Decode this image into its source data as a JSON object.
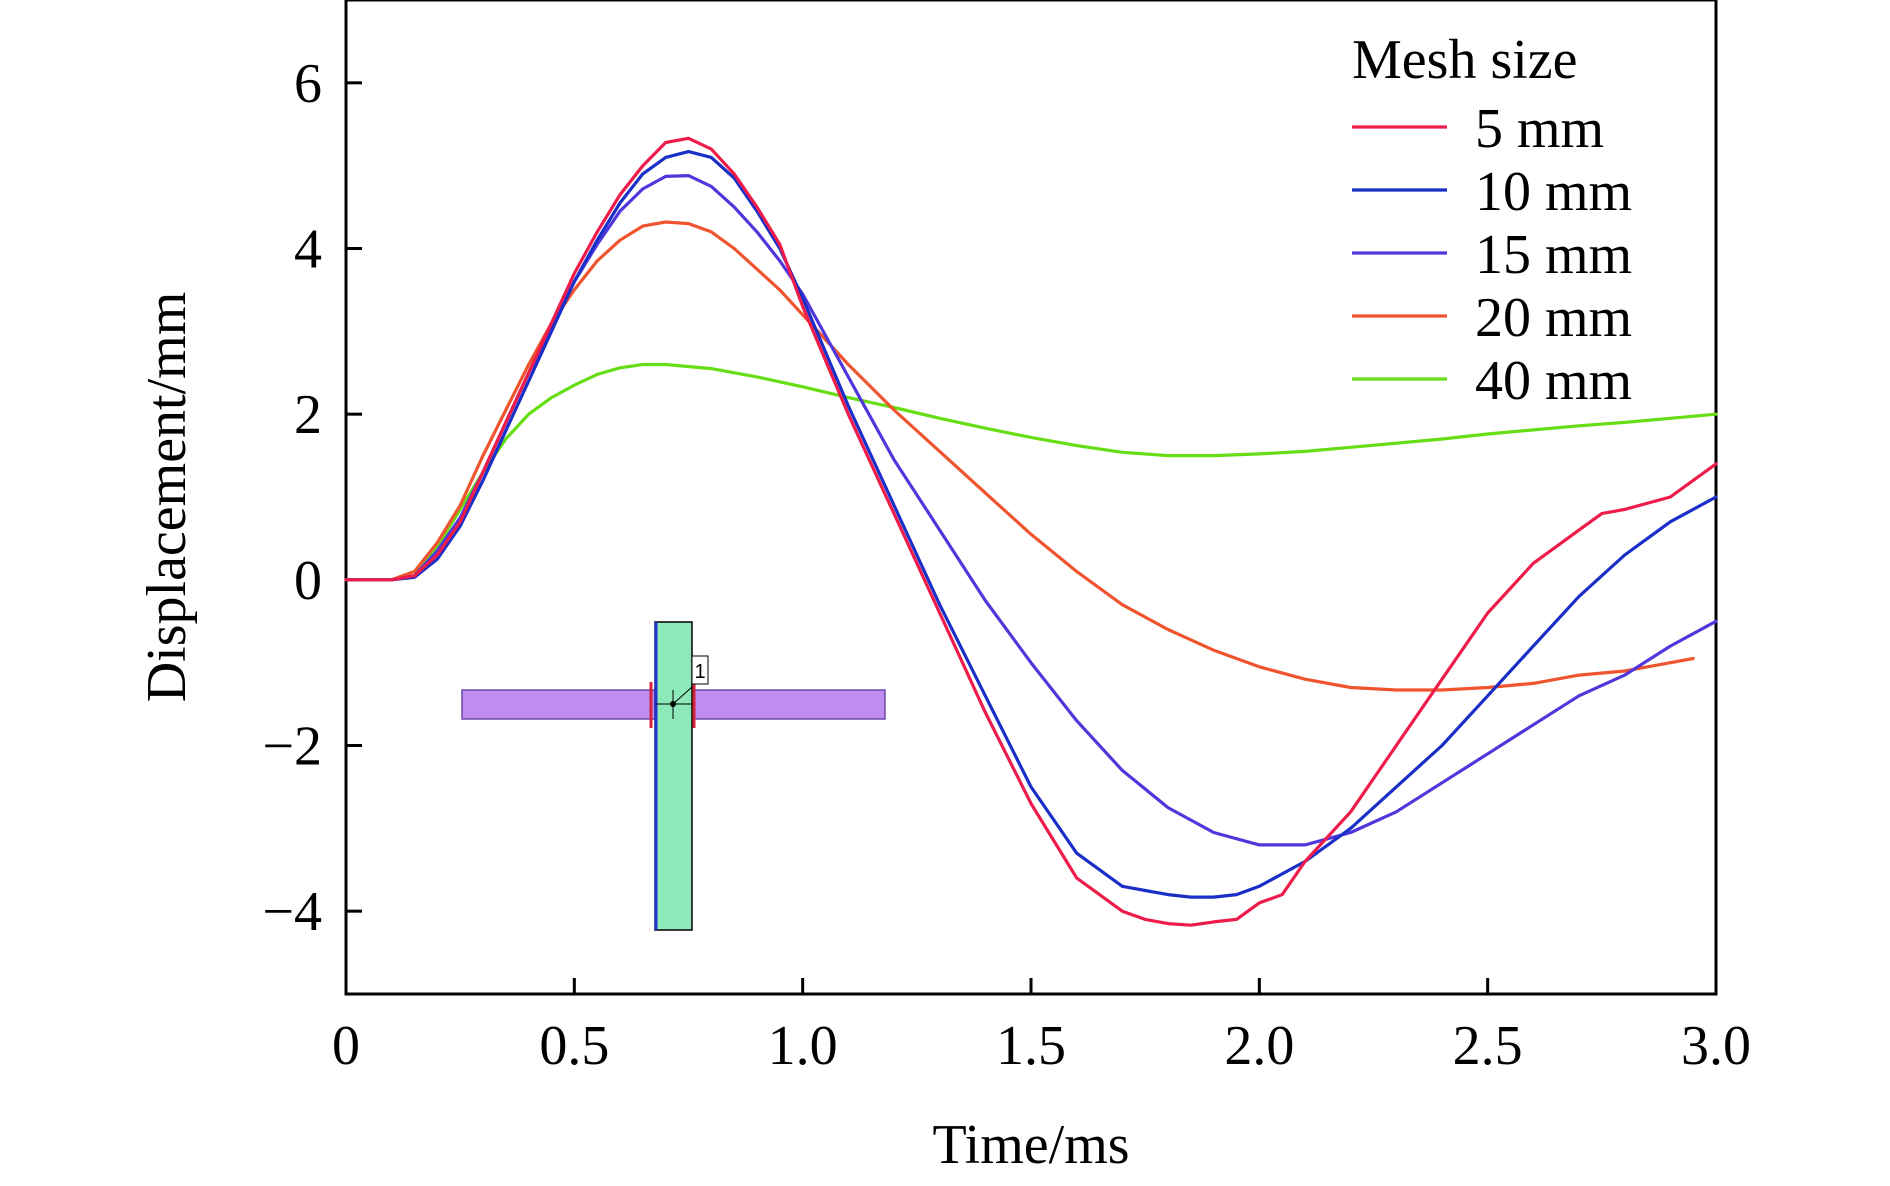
{
  "chart_data": {
    "type": "line",
    "title": "",
    "xlabel": "Time/ms",
    "ylabel": "Displacement/mm",
    "xlim": [
      0,
      3.0
    ],
    "ylim": [
      -5,
      7
    ],
    "x_ticks": [
      0,
      0.5,
      1.0,
      1.5,
      2.0,
      2.5,
      3.0
    ],
    "x_tick_labels": [
      "0",
      "0.5",
      "1.0",
      "1.5",
      "2.0",
      "2.5",
      "3.0"
    ],
    "y_ticks": [
      -4,
      -2,
      0,
      2,
      4,
      6
    ],
    "y_tick_labels": [
      "−4",
      "−2",
      "0",
      "2",
      "4",
      "6"
    ],
    "grid": false,
    "legend": {
      "title": "Mesh size",
      "position": "top-right"
    },
    "series": [
      {
        "name": "5 mm",
        "color": "#ee1c4a",
        "points": [
          [
            0,
            0
          ],
          [
            0.1,
            0
          ],
          [
            0.15,
            0.05
          ],
          [
            0.2,
            0.3
          ],
          [
            0.25,
            0.7
          ],
          [
            0.3,
            1.3
          ],
          [
            0.35,
            1.9
          ],
          [
            0.4,
            2.5
          ],
          [
            0.45,
            3.1
          ],
          [
            0.5,
            3.7
          ],
          [
            0.55,
            4.2
          ],
          [
            0.6,
            4.65
          ],
          [
            0.65,
            5.0
          ],
          [
            0.7,
            5.28
          ],
          [
            0.75,
            5.33
          ],
          [
            0.8,
            5.2
          ],
          [
            0.85,
            4.9
          ],
          [
            0.9,
            4.5
          ],
          [
            0.95,
            4.05
          ],
          [
            1.0,
            3.3
          ],
          [
            1.1,
            2.0
          ],
          [
            1.2,
            0.8
          ],
          [
            1.3,
            -0.4
          ],
          [
            1.4,
            -1.6
          ],
          [
            1.5,
            -2.7
          ],
          [
            1.6,
            -3.6
          ],
          [
            1.7,
            -4.0
          ],
          [
            1.75,
            -4.1
          ],
          [
            1.8,
            -4.15
          ],
          [
            1.85,
            -4.17
          ],
          [
            1.9,
            -4.13
          ],
          [
            1.95,
            -4.1
          ],
          [
            2.0,
            -3.9
          ],
          [
            2.05,
            -3.8
          ],
          [
            2.1,
            -3.4
          ],
          [
            2.2,
            -2.8
          ],
          [
            2.3,
            -2.0
          ],
          [
            2.4,
            -1.2
          ],
          [
            2.5,
            -0.4
          ],
          [
            2.6,
            0.2
          ],
          [
            2.7,
            0.6
          ],
          [
            2.75,
            0.8
          ],
          [
            2.8,
            0.85
          ],
          [
            2.9,
            1.0
          ],
          [
            3.0,
            1.4
          ]
        ]
      },
      {
        "name": "10 mm",
        "color": "#1a2fc8",
        "points": [
          [
            0,
            0
          ],
          [
            0.1,
            0
          ],
          [
            0.15,
            0.03
          ],
          [
            0.2,
            0.25
          ],
          [
            0.25,
            0.65
          ],
          [
            0.3,
            1.2
          ],
          [
            0.35,
            1.8
          ],
          [
            0.4,
            2.4
          ],
          [
            0.45,
            3.0
          ],
          [
            0.5,
            3.6
          ],
          [
            0.55,
            4.1
          ],
          [
            0.6,
            4.55
          ],
          [
            0.65,
            4.9
          ],
          [
            0.7,
            5.1
          ],
          [
            0.75,
            5.17
          ],
          [
            0.8,
            5.1
          ],
          [
            0.85,
            4.85
          ],
          [
            0.9,
            4.45
          ],
          [
            0.95,
            4.0
          ],
          [
            1.0,
            3.4
          ],
          [
            1.1,
            2.1
          ],
          [
            1.2,
            0.9
          ],
          [
            1.3,
            -0.3
          ],
          [
            1.4,
            -1.4
          ],
          [
            1.5,
            -2.5
          ],
          [
            1.6,
            -3.3
          ],
          [
            1.7,
            -3.7
          ],
          [
            1.75,
            -3.75
          ],
          [
            1.8,
            -3.8
          ],
          [
            1.85,
            -3.83
          ],
          [
            1.9,
            -3.83
          ],
          [
            1.95,
            -3.8
          ],
          [
            2.0,
            -3.7
          ],
          [
            2.1,
            -3.4
          ],
          [
            2.2,
            -3.0
          ],
          [
            2.3,
            -2.5
          ],
          [
            2.4,
            -2.0
          ],
          [
            2.5,
            -1.4
          ],
          [
            2.6,
            -0.8
          ],
          [
            2.7,
            -0.2
          ],
          [
            2.8,
            0.3
          ],
          [
            2.9,
            0.7
          ],
          [
            3.0,
            1.0
          ]
        ]
      },
      {
        "name": "15 mm",
        "color": "#5037dc",
        "points": [
          [
            0,
            0
          ],
          [
            0.1,
            0
          ],
          [
            0.15,
            0.05
          ],
          [
            0.2,
            0.35
          ],
          [
            0.25,
            0.75
          ],
          [
            0.3,
            1.3
          ],
          [
            0.35,
            1.9
          ],
          [
            0.4,
            2.5
          ],
          [
            0.45,
            3.05
          ],
          [
            0.5,
            3.6
          ],
          [
            0.55,
            4.05
          ],
          [
            0.6,
            4.45
          ],
          [
            0.65,
            4.72
          ],
          [
            0.7,
            4.87
          ],
          [
            0.75,
            4.88
          ],
          [
            0.8,
            4.75
          ],
          [
            0.85,
            4.5
          ],
          [
            0.9,
            4.2
          ],
          [
            0.95,
            3.85
          ],
          [
            1.0,
            3.45
          ],
          [
            1.1,
            2.45
          ],
          [
            1.2,
            1.45
          ],
          [
            1.3,
            0.6
          ],
          [
            1.4,
            -0.25
          ],
          [
            1.5,
            -1.0
          ],
          [
            1.6,
            -1.7
          ],
          [
            1.7,
            -2.3
          ],
          [
            1.8,
            -2.75
          ],
          [
            1.9,
            -3.05
          ],
          [
            2.0,
            -3.2
          ],
          [
            2.1,
            -3.2
          ],
          [
            2.2,
            -3.05
          ],
          [
            2.3,
            -2.8
          ],
          [
            2.4,
            -2.45
          ],
          [
            2.5,
            -2.1
          ],
          [
            2.6,
            -1.75
          ],
          [
            2.7,
            -1.4
          ],
          [
            2.8,
            -1.15
          ],
          [
            2.9,
            -0.8
          ],
          [
            3.0,
            -0.5
          ]
        ]
      },
      {
        "name": "20 mm",
        "color": "#f0542f",
        "points": [
          [
            0,
            0
          ],
          [
            0.1,
            0
          ],
          [
            0.15,
            0.1
          ],
          [
            0.2,
            0.45
          ],
          [
            0.25,
            0.9
          ],
          [
            0.3,
            1.5
          ],
          [
            0.35,
            2.05
          ],
          [
            0.4,
            2.6
          ],
          [
            0.45,
            3.1
          ],
          [
            0.5,
            3.5
          ],
          [
            0.55,
            3.85
          ],
          [
            0.6,
            4.1
          ],
          [
            0.65,
            4.27
          ],
          [
            0.7,
            4.32
          ],
          [
            0.75,
            4.3
          ],
          [
            0.8,
            4.2
          ],
          [
            0.85,
            4.0
          ],
          [
            0.9,
            3.75
          ],
          [
            0.95,
            3.5
          ],
          [
            1.0,
            3.2
          ],
          [
            1.1,
            2.6
          ],
          [
            1.2,
            2.05
          ],
          [
            1.3,
            1.55
          ],
          [
            1.4,
            1.05
          ],
          [
            1.5,
            0.55
          ],
          [
            1.6,
            0.1
          ],
          [
            1.7,
            -0.3
          ],
          [
            1.8,
            -0.6
          ],
          [
            1.9,
            -0.85
          ],
          [
            2.0,
            -1.05
          ],
          [
            2.1,
            -1.2
          ],
          [
            2.2,
            -1.3
          ],
          [
            2.3,
            -1.33
          ],
          [
            2.4,
            -1.33
          ],
          [
            2.5,
            -1.3
          ],
          [
            2.6,
            -1.25
          ],
          [
            2.7,
            -1.15
          ],
          [
            2.8,
            -1.1
          ],
          [
            2.9,
            -1.0
          ],
          [
            2.95,
            -0.95
          ]
        ]
      },
      {
        "name": "40 mm",
        "color": "#66dd14",
        "points": [
          [
            0,
            0
          ],
          [
            0.1,
            0
          ],
          [
            0.15,
            0.1
          ],
          [
            0.2,
            0.4
          ],
          [
            0.25,
            0.85
          ],
          [
            0.3,
            1.3
          ],
          [
            0.35,
            1.7
          ],
          [
            0.4,
            2.0
          ],
          [
            0.45,
            2.2
          ],
          [
            0.5,
            2.35
          ],
          [
            0.55,
            2.48
          ],
          [
            0.6,
            2.56
          ],
          [
            0.65,
            2.6
          ],
          [
            0.7,
            2.6
          ],
          [
            0.8,
            2.55
          ],
          [
            0.9,
            2.45
          ],
          [
            1.0,
            2.33
          ],
          [
            1.1,
            2.2
          ],
          [
            1.2,
            2.08
          ],
          [
            1.3,
            1.95
          ],
          [
            1.4,
            1.83
          ],
          [
            1.5,
            1.72
          ],
          [
            1.6,
            1.62
          ],
          [
            1.7,
            1.54
          ],
          [
            1.8,
            1.5
          ],
          [
            1.9,
            1.5
          ],
          [
            2.0,
            1.52
          ],
          [
            2.1,
            1.55
          ],
          [
            2.2,
            1.6
          ],
          [
            2.3,
            1.65
          ],
          [
            2.4,
            1.7
          ],
          [
            2.5,
            1.76
          ],
          [
            2.6,
            1.81
          ],
          [
            2.7,
            1.86
          ],
          [
            2.8,
            1.9
          ],
          [
            2.9,
            1.95
          ],
          [
            3.0,
            2.0
          ]
        ]
      }
    ],
    "inset": {
      "node_label": "1",
      "horizontal_member_color": "#c08cf2",
      "vertical_member_color": "#8de8ba",
      "vertical_edge_color": "#2034d4",
      "connector_color": "#d4243c"
    }
  }
}
